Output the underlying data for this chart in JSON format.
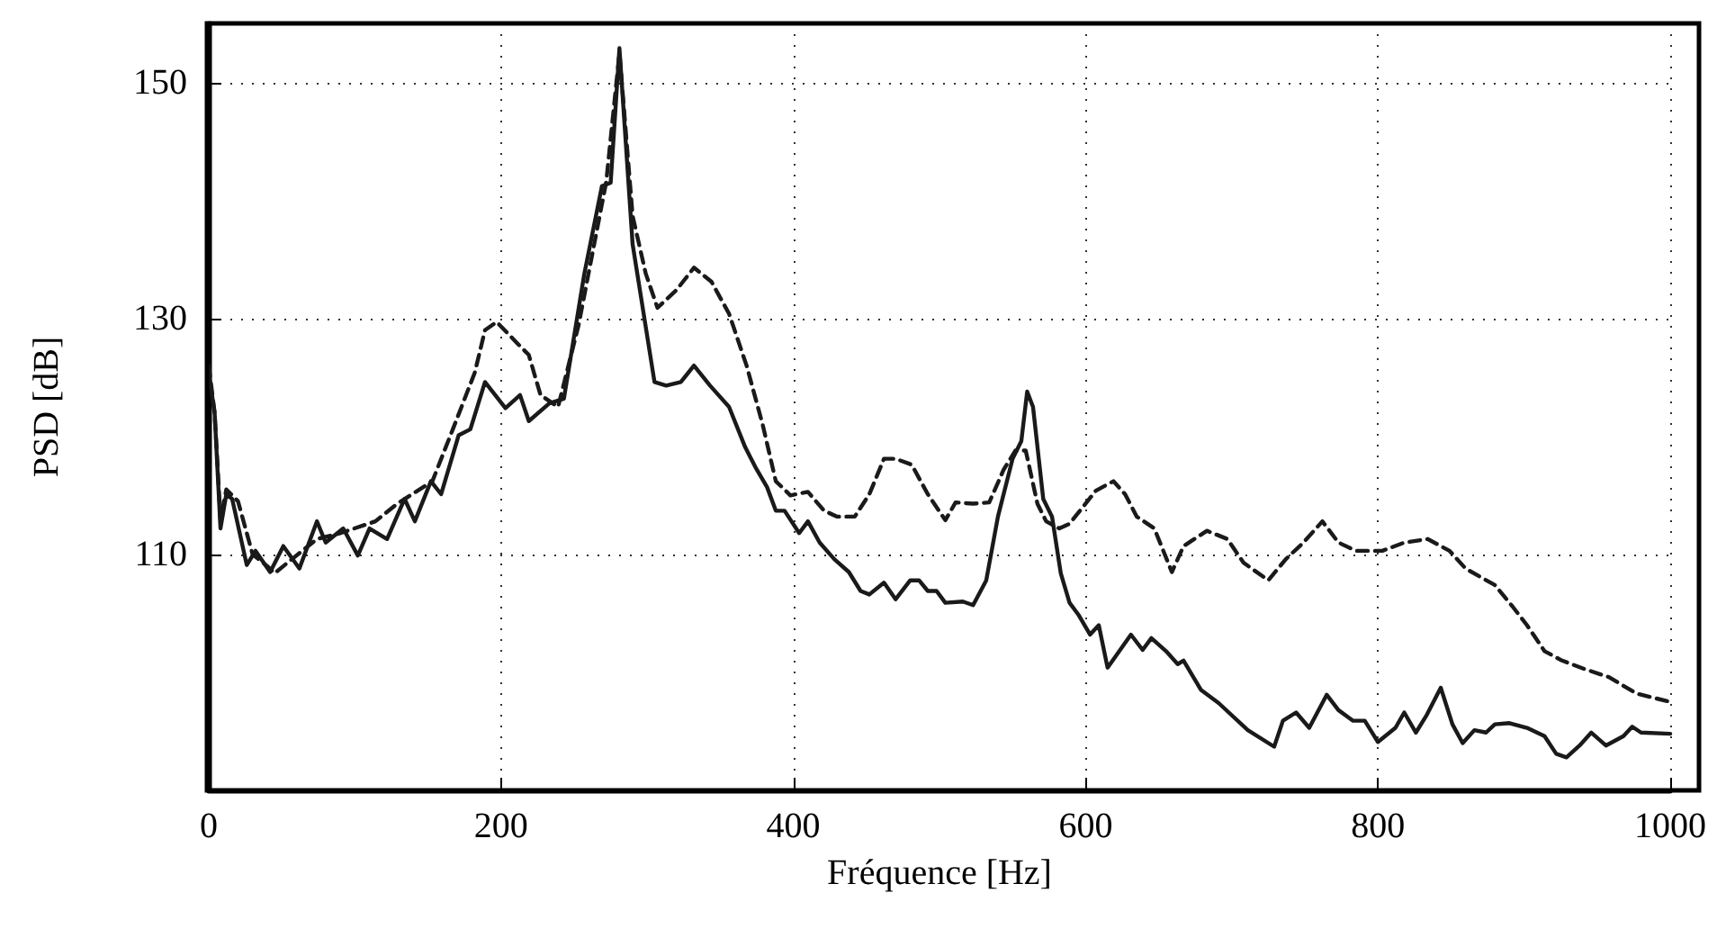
{
  "chart_data": {
    "type": "line",
    "xlabel": "Fréquence [Hz]",
    "ylabel": "PSD [dB]",
    "xlim": [
      0,
      1000
    ],
    "xticks": [
      0,
      200,
      400,
      600,
      800,
      1000
    ],
    "ylim": [
      90,
      155
    ],
    "yticks": [
      110,
      130,
      150
    ],
    "grid": true,
    "marker": "none",
    "series": [
      {
        "color": "#1a1a1a",
        "line_style": "solid",
        "x": [
          0,
          4,
          8,
          12,
          16,
          26,
          32,
          42,
          51,
          62,
          74,
          80,
          92,
          102,
          110,
          122,
          134,
          141,
          152,
          159,
          171,
          179,
          189,
          203,
          213,
          219,
          233,
          243,
          257,
          269,
          275,
          281,
          290,
          305,
          313,
          323,
          332,
          343,
          356,
          367,
          374,
          382,
          388,
          394,
          404,
          410,
          418,
          428,
          438,
          446,
          452,
          462,
          470,
          480,
          486,
          492,
          498,
          504,
          516,
          523,
          532,
          540,
          550,
          556,
          560,
          564,
          571,
          577,
          583,
          589,
          595,
          603,
          609,
          615,
          631,
          639,
          645,
          655,
          663,
          667,
          679,
          691,
          711,
          729,
          735,
          744,
          753,
          765,
          773,
          783,
          791,
          800,
          812,
          818,
          826,
          833,
          843,
          851,
          858,
          866,
          874,
          880,
          890,
          902,
          914,
          922,
          929,
          938,
          946,
          956,
          968,
          974,
          980,
          1000
        ],
        "values": [
          125.4,
          122,
          112.2,
          115.1,
          114.7,
          109.1,
          110.3,
          108.5,
          110.7,
          108.8,
          112.8,
          111,
          112.2,
          109.9,
          112.2,
          111.3,
          114.7,
          112.8,
          116.2,
          115.1,
          120.1,
          120.6,
          124.6,
          122.4,
          123.5,
          121.3,
          122.8,
          123.2,
          133.8,
          141.2,
          141.5,
          152.9,
          136.3,
          124.6,
          124.3,
          124.6,
          126,
          124.3,
          122.5,
          119.1,
          117.4,
          115.7,
          113.7,
          113.7,
          111.8,
          112.8,
          111,
          109.6,
          108.5,
          106.9,
          106.6,
          107.6,
          106.2,
          107.8,
          107.8,
          106.9,
          106.9,
          105.9,
          106,
          105.7,
          107.8,
          113.2,
          118.1,
          119.6,
          123.8,
          122.5,
          114.7,
          113.2,
          108.4,
          105.9,
          104.9,
          103.2,
          104,
          100.4,
          103.2,
          101.9,
          102.9,
          101.8,
          100.7,
          101,
          98.5,
          97.4,
          95.1,
          93.7,
          95.9,
          96.6,
          95.3,
          98.1,
          96.8,
          95.9,
          95.9,
          94.1,
          95.3,
          96.6,
          94.9,
          96.3,
          98.7,
          95.6,
          94,
          95.1,
          94.9,
          95.6,
          95.7,
          95.3,
          94.6,
          93.1,
          92.8,
          93.8,
          94.9,
          93.8,
          94.6,
          95.4,
          94.9,
          94.8
        ]
      },
      {
        "color": "#1a1a1a",
        "line_style": "dashed",
        "x": [
          0,
          4,
          8,
          12,
          20,
          30,
          40,
          45,
          54,
          74,
          90,
          114,
          129,
          153,
          167,
          182,
          189,
          197,
          211,
          219,
          227,
          239,
          253,
          272,
          281,
          290,
          299,
          307,
          320,
          332,
          344,
          356,
          368,
          379,
          388,
          398,
          410,
          421,
          430,
          442,
          452,
          462,
          470,
          481,
          492,
          504,
          511,
          523,
          534,
          544,
          552,
          559,
          567,
          573,
          582,
          589,
          600,
          607,
          619,
          627,
          635,
          647,
          659,
          667,
          683,
          697,
          708,
          725,
          737,
          749,
          762,
          773,
          785,
          803,
          818,
          834,
          849,
          860,
          880,
          892,
          902,
          914,
          926,
          941,
          958,
          977,
          1000
        ],
        "values": [
          126,
          122,
          113,
          115.5,
          114.5,
          110,
          109,
          108.4,
          109.3,
          111.3,
          111.8,
          112.8,
          114.3,
          116.2,
          120.6,
          125.4,
          129,
          129.7,
          127.9,
          126.9,
          123.5,
          122.5,
          129.4,
          141.6,
          152.5,
          138.7,
          133.8,
          130.9,
          132.4,
          134.3,
          133.1,
          130.4,
          126,
          121,
          116.2,
          115,
          115.3,
          113.7,
          113.2,
          113.2,
          115.1,
          118.1,
          118.1,
          117.6,
          115.1,
          112.9,
          114.4,
          114.3,
          114.4,
          117.2,
          118.8,
          118.8,
          114.3,
          112.8,
          112.2,
          112.6,
          114.3,
          115.4,
          116.2,
          115.1,
          113.2,
          112.2,
          108.5,
          110.7,
          112,
          111.3,
          109.3,
          107.8,
          109.6,
          111,
          112.8,
          111,
          110.3,
          110.3,
          111,
          111.3,
          110.3,
          108.8,
          107.4,
          105.6,
          104,
          101.8,
          101,
          100.3,
          99.6,
          98.2,
          97.5
        ]
      }
    ]
  }
}
